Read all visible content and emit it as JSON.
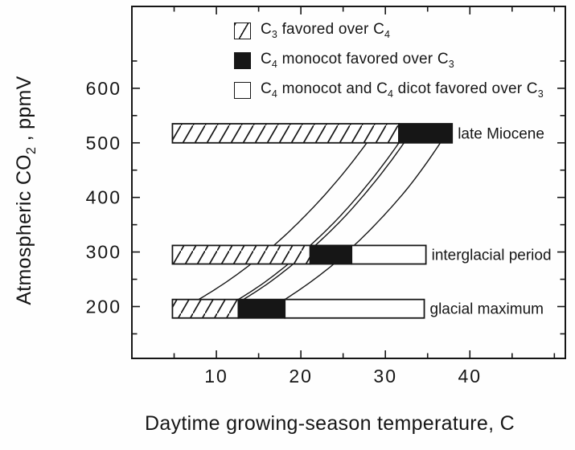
{
  "colors": {
    "ink": "#161616",
    "background": "#ffffff"
  },
  "chart_data": {
    "type": "bar",
    "orientation": "horizontal-stacked-bars-with-crossover-curves",
    "grid": false,
    "x_axis": {
      "label": "Daytime growing-season temperature, C",
      "range": [
        0,
        51.3
      ],
      "major_ticks": [
        10,
        20,
        30,
        40
      ],
      "minor_ticks": [
        5,
        15,
        25,
        35,
        45,
        50
      ]
    },
    "y_axis": {
      "label": "Atmospheric CO2 , ppmV",
      "range": [
        105,
        750
      ],
      "major_ticks": [
        200,
        300,
        400,
        500,
        600
      ],
      "minor_ticks": [
        150,
        250,
        350,
        450,
        550,
        650
      ]
    },
    "legend": [
      {
        "swatch": "hatched",
        "label": "C3 favored over C4"
      },
      {
        "swatch": "black",
        "label": "C4 monocot favored over C3"
      },
      {
        "swatch": "white",
        "label": "C4 monocot and C4 dicot favored over C3"
      }
    ],
    "bars": [
      {
        "label": "late Miocene",
        "co2_range": [
          500,
          535
        ],
        "segments": [
          {
            "type": "hatched",
            "t_range": [
              4.8,
              31.6
            ]
          },
          {
            "type": "black",
            "t_range": [
              31.6,
              37.9
            ]
          }
        ]
      },
      {
        "label": "interglacial period",
        "co2_range": [
          278,
          312
        ],
        "segments": [
          {
            "type": "hatched",
            "t_range": [
              4.8,
              21.1
            ]
          },
          {
            "type": "black",
            "t_range": [
              21.1,
              26.0
            ]
          },
          {
            "type": "white",
            "t_range": [
              26.0,
              34.8
            ]
          }
        ]
      },
      {
        "label": "glacial maximum",
        "co2_range": [
          179,
          213
        ],
        "segments": [
          {
            "type": "hatched",
            "t_range": [
              4.8,
              12.6
            ]
          },
          {
            "type": "black",
            "t_range": [
              12.6,
              18.1
            ]
          },
          {
            "type": "white",
            "t_range": [
              18.1,
              34.6
            ]
          }
        ]
      }
    ],
    "curves": [
      {
        "name": "crossover-curve-1",
        "points": [
          [
            7.9,
            213
          ],
          [
            10.7,
            240
          ],
          [
            14.1,
            278
          ],
          [
            16.8,
            312
          ],
          [
            20.1,
            360
          ],
          [
            23.7,
            420
          ],
          [
            27.8,
            500
          ]
        ]
      },
      {
        "name": "crossover-curve-2",
        "points": [
          [
            12.6,
            213
          ],
          [
            15.3,
            240
          ],
          [
            18.5,
            278
          ],
          [
            21.1,
            312
          ],
          [
            24.3,
            360
          ],
          [
            27.7,
            420
          ],
          [
            31.6,
            500
          ]
        ]
      },
      {
        "name": "crossover-curve-3",
        "points": [
          [
            13.2,
            213
          ],
          [
            15.9,
            240
          ],
          [
            19.1,
            278
          ],
          [
            21.7,
            312
          ],
          [
            24.9,
            360
          ],
          [
            28.3,
            420
          ],
          [
            32.2,
            500
          ]
        ]
      },
      {
        "name": "crossover-curve-4",
        "points": [
          [
            18.1,
            213
          ],
          [
            20.7,
            240
          ],
          [
            23.9,
            278
          ],
          [
            26.3,
            312
          ],
          [
            29.4,
            360
          ],
          [
            32.8,
            420
          ],
          [
            36.5,
            500
          ]
        ]
      }
    ]
  }
}
